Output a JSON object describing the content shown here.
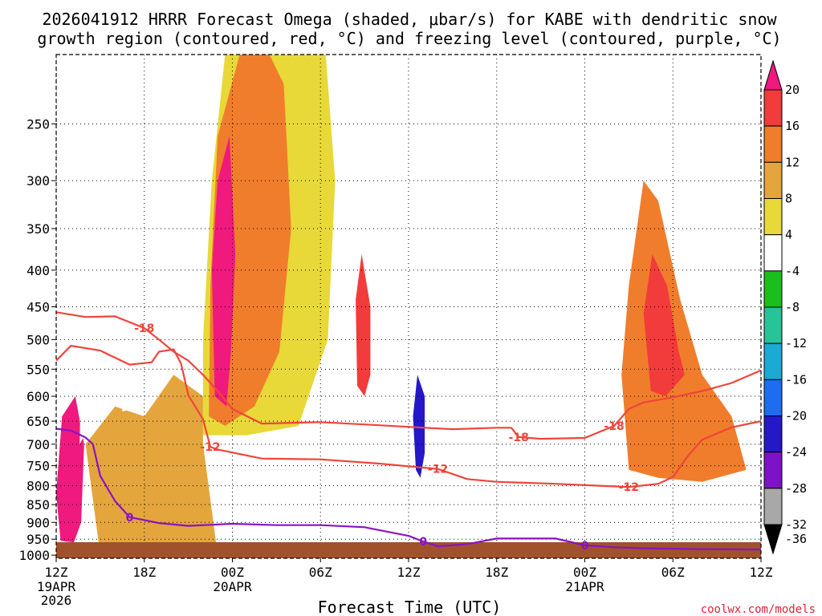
{
  "chart_data": {
    "type": "heatmap",
    "title_lines": [
      "2026041912 HRRR Forecast Omega (shaded, μbar/s) for KABE with dendritic snow",
      "growth region (contoured, red, °C) and freezing level (contoured, purple, °C)"
    ],
    "xlabel": "Forecast Time (UTC)",
    "x_ticks": [
      {
        "hour": 0,
        "label": "12Z",
        "sub": [
          "19APR",
          "2026"
        ]
      },
      {
        "hour": 6,
        "label": "18Z",
        "sub": []
      },
      {
        "hour": 12,
        "label": "00Z",
        "sub": [
          "20APR"
        ]
      },
      {
        "hour": 18,
        "label": "06Z",
        "sub": []
      },
      {
        "hour": 24,
        "label": "12Z",
        "sub": []
      },
      {
        "hour": 30,
        "label": "18Z",
        "sub": []
      },
      {
        "hour": 36,
        "label": "00Z",
        "sub": [
          "21APR"
        ]
      },
      {
        "hour": 42,
        "label": "06Z",
        "sub": []
      },
      {
        "hour": 48,
        "label": "12Z",
        "sub": []
      }
    ],
    "xlim": [
      0,
      48
    ],
    "y_ticks": [
      250,
      300,
      350,
      400,
      450,
      500,
      550,
      600,
      650,
      700,
      750,
      800,
      850,
      900,
      950,
      1000
    ],
    "ylim_hpa": [
      1010,
      200
    ],
    "colorbar": {
      "labels": [
        "20",
        "16",
        "12",
        "8",
        "4",
        "-4",
        "-8",
        "-12",
        "-16",
        "-20",
        "-24",
        "-28",
        "-32",
        "-36"
      ],
      "colors": [
        "#f0197d",
        "#f23b3b",
        "#f07d2c",
        "#e4a53c",
        "#e8d838",
        "#ffffff",
        "#1bbf1b",
        "#27c498",
        "#1aaad4",
        "#1d6cf2",
        "#2418c8",
        "#7e12c9",
        "#a8a8a8",
        "#000000"
      ]
    },
    "contour_labels": {
      "dgz_upper": "-18",
      "dgz_lower": "-12",
      "freezing": "0"
    },
    "dgz_upper_minus18": [
      [
        0,
        458
      ],
      [
        2,
        465
      ],
      [
        4,
        464
      ],
      [
        6,
        482
      ],
      [
        7,
        500
      ],
      [
        8,
        520
      ],
      [
        9,
        535
      ],
      [
        10,
        560
      ],
      [
        11,
        590
      ],
      [
        12,
        625
      ],
      [
        14,
        655
      ],
      [
        18,
        652
      ],
      [
        21,
        657
      ],
      [
        24,
        662
      ],
      [
        27,
        667
      ],
      [
        30,
        664
      ],
      [
        31,
        664
      ],
      [
        31.5,
        684
      ],
      [
        33,
        688
      ],
      [
        36,
        686
      ],
      [
        38,
        660
      ],
      [
        39,
        625
      ],
      [
        40,
        612
      ],
      [
        42,
        602
      ],
      [
        44,
        590
      ],
      [
        46,
        575
      ],
      [
        48,
        552
      ]
    ],
    "dgz_lower_minus12": [
      [
        0,
        535
      ],
      [
        1,
        510
      ],
      [
        3,
        518
      ],
      [
        5,
        542
      ],
      [
        6.5,
        538
      ],
      [
        7,
        520
      ],
      [
        8,
        516
      ],
      [
        8.5,
        540
      ],
      [
        9,
        598
      ],
      [
        10,
        646
      ],
      [
        10.5,
        706
      ],
      [
        11,
        712
      ],
      [
        14,
        733
      ],
      [
        18,
        735
      ],
      [
        22,
        745
      ],
      [
        26,
        758
      ],
      [
        28,
        783
      ],
      [
        30,
        790
      ],
      [
        34,
        795
      ],
      [
        37,
        800
      ],
      [
        39,
        803
      ],
      [
        41,
        795
      ],
      [
        42,
        778
      ],
      [
        43,
        728
      ],
      [
        44,
        690
      ],
      [
        46,
        663
      ],
      [
        48,
        650
      ]
    ],
    "freezing_0C": [
      [
        0,
        666
      ],
      [
        1,
        670
      ],
      [
        2,
        685
      ],
      [
        2.5,
        700
      ],
      [
        3,
        775
      ],
      [
        4,
        840
      ],
      [
        5,
        885
      ],
      [
        7,
        902
      ],
      [
        9,
        910
      ],
      [
        12,
        904
      ],
      [
        15,
        908
      ],
      [
        18,
        908
      ],
      [
        21,
        914
      ],
      [
        24,
        940
      ],
      [
        25,
        957
      ],
      [
        26,
        972
      ],
      [
        28,
        965
      ],
      [
        30,
        948
      ],
      [
        32,
        948
      ],
      [
        34,
        948
      ],
      [
        35,
        958
      ],
      [
        36,
        969
      ],
      [
        38,
        975
      ],
      [
        40,
        978
      ],
      [
        44,
        981
      ],
      [
        48,
        982
      ]
    ],
    "omega_regions": [
      {
        "name": "descent-band-evening",
        "value": 8,
        "poly": [
          [
            3,
            1000
          ],
          [
            2,
            700
          ],
          [
            4,
            620
          ],
          [
            6,
            640
          ],
          [
            8,
            560
          ],
          [
            10,
            600
          ],
          [
            10,
            700
          ],
          [
            11,
            1000
          ]
        ]
      },
      {
        "name": "descent-core-pink-0",
        "value": 20,
        "poly": [
          [
            0.3,
            955
          ],
          [
            0,
            820
          ],
          [
            0.4,
            640
          ],
          [
            1.3,
            600
          ],
          [
            1.9,
            700
          ],
          [
            1.7,
            900
          ],
          [
            1.2,
            960
          ]
        ]
      },
      {
        "name": "ascent-green-column-left",
        "value": -4,
        "poly": [
          [
            1.6,
            700
          ],
          [
            1.7,
            520
          ],
          [
            2,
            330
          ],
          [
            2.5,
            200
          ],
          [
            3,
            150
          ],
          [
            3.3,
            300
          ],
          [
            3,
            520
          ],
          [
            2.6,
            640
          ]
        ]
      },
      {
        "name": "ascent-green-column-2",
        "value": -4,
        "poly": [
          [
            4.5,
            630
          ],
          [
            4.7,
            470
          ],
          [
            5.3,
            340
          ],
          [
            6,
            230
          ],
          [
            6.8,
            170
          ],
          [
            7.2,
            300
          ],
          [
            6.8,
            500
          ],
          [
            6.1,
            620
          ]
        ]
      },
      {
        "name": "descent-plume-00z",
        "value": 4,
        "poly": [
          [
            10,
            680
          ],
          [
            10,
            500
          ],
          [
            10.6,
            300
          ],
          [
            11.5,
            200
          ],
          [
            13,
            150
          ],
          [
            15,
            120
          ],
          [
            18,
            160
          ],
          [
            19,
            300
          ],
          [
            18.5,
            500
          ],
          [
            16.5,
            660
          ],
          [
            13,
            680
          ]
        ]
      },
      {
        "name": "descent-plume-orange",
        "value": 12,
        "poly": [
          [
            10.4,
            640
          ],
          [
            10.5,
            420
          ],
          [
            11,
            260
          ],
          [
            12.5,
            200
          ],
          [
            14,
            190
          ],
          [
            15.5,
            220
          ],
          [
            16,
            350
          ],
          [
            15.2,
            520
          ],
          [
            13.5,
            620
          ],
          [
            11.5,
            660
          ]
        ]
      },
      {
        "name": "descent-core-pink-00z",
        "value": 20,
        "poly": [
          [
            10.8,
            600
          ],
          [
            10.6,
            400
          ],
          [
            11,
            300
          ],
          [
            11.8,
            260
          ],
          [
            12.2,
            380
          ],
          [
            11.9,
            520
          ],
          [
            11.6,
            620
          ]
        ]
      },
      {
        "name": "descent-core-09z",
        "value": 16,
        "poly": [
          [
            20.5,
            580
          ],
          [
            20.4,
            440
          ],
          [
            20.8,
            380
          ],
          [
            21.4,
            450
          ],
          [
            21.4,
            560
          ],
          [
            21,
            600
          ]
        ]
      },
      {
        "name": "ascent-12z-core",
        "value": -24,
        "poly": [
          [
            24.5,
            760
          ],
          [
            24.3,
            640
          ],
          [
            24.6,
            560
          ],
          [
            25.1,
            600
          ],
          [
            25.1,
            720
          ],
          [
            24.8,
            780
          ]
        ]
      },
      {
        "name": "descent-06z-day2",
        "value": 12,
        "poly": [
          [
            39,
            760
          ],
          [
            38.5,
            560
          ],
          [
            39,
            420
          ],
          [
            40,
            300
          ],
          [
            41,
            320
          ],
          [
            42.5,
            440
          ],
          [
            44,
            560
          ],
          [
            46,
            640
          ],
          [
            47,
            760
          ],
          [
            44,
            790
          ],
          [
            41,
            780
          ]
        ]
      },
      {
        "name": "descent-06z-core",
        "value": 16,
        "poly": [
          [
            40.5,
            590
          ],
          [
            40,
            460
          ],
          [
            40.6,
            380
          ],
          [
            41.6,
            420
          ],
          [
            42.4,
            520
          ],
          [
            42.8,
            560
          ],
          [
            41.5,
            600
          ]
        ]
      },
      {
        "name": "ascent-green-day2-top",
        "value": -4,
        "poly": [
          [
            43,
            320
          ],
          [
            43.2,
            210
          ],
          [
            44.5,
            160
          ],
          [
            46,
            150
          ],
          [
            48,
            200
          ],
          [
            48,
            420
          ],
          [
            47,
            440
          ],
          [
            46.2,
            400
          ],
          [
            45.5,
            360
          ],
          [
            44.5,
            300
          ]
        ]
      }
    ],
    "credit": "coolwx.com/models"
  }
}
